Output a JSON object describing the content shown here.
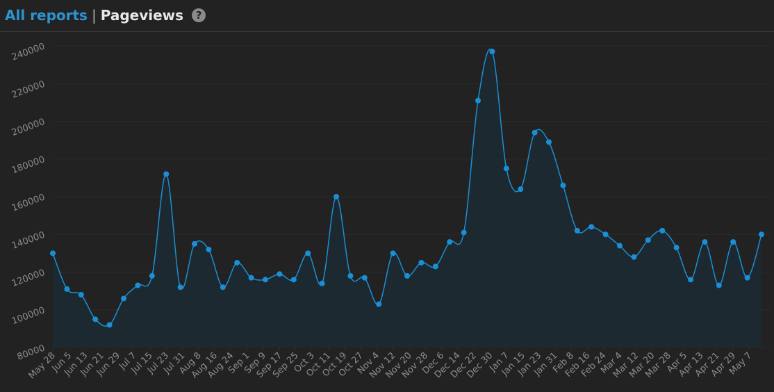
{
  "header": {
    "breadcrumb": "All reports",
    "separator": "|",
    "title": "Pageviews",
    "help": "?"
  },
  "chart_data": {
    "type": "area",
    "x": [
      0,
      7,
      14,
      21,
      28,
      35,
      42,
      49,
      56,
      63,
      70,
      77,
      84,
      91,
      98,
      105,
      112,
      119,
      126,
      133,
      140,
      147,
      154,
      161,
      168,
      175,
      182,
      189,
      196,
      203,
      210,
      217,
      224,
      231,
      238,
      245,
      252,
      259,
      266,
      273,
      280,
      287,
      294,
      301,
      308,
      315,
      322,
      329,
      336,
      343,
      350
    ],
    "series": [
      {
        "name": "Pageviews",
        "color": "#1a8fd6",
        "values": [
          130000,
          111000,
          108000,
          95000,
          92000,
          106000,
          113000,
          118000,
          172000,
          112000,
          135000,
          132000,
          112000,
          125000,
          117000,
          116000,
          119000,
          116000,
          130000,
          114000,
          160000,
          118000,
          117000,
          103000,
          130000,
          118000,
          125000,
          123000,
          136000,
          141000,
          211000,
          237000,
          175000,
          164000,
          194000,
          189000,
          166000,
          142000,
          144000,
          140000,
          134000,
          128000,
          137000,
          142000,
          133000,
          116000,
          136000,
          113000,
          136000,
          117000,
          140000
        ]
      }
    ],
    "xlim": [
      0,
      350
    ],
    "xticks": [
      {
        "value": 0,
        "label": "May 28"
      },
      {
        "value": 8,
        "label": "Jun 5"
      },
      {
        "value": 16,
        "label": "Jun 13"
      },
      {
        "value": 24,
        "label": "Jun 21"
      },
      {
        "value": 32,
        "label": "Jun 29"
      },
      {
        "value": 40,
        "label": "Jul 7"
      },
      {
        "value": 48,
        "label": "Jul 15"
      },
      {
        "value": 56,
        "label": "Jul 23"
      },
      {
        "value": 64,
        "label": "Jul 31"
      },
      {
        "value": 72,
        "label": "Aug 8"
      },
      {
        "value": 80,
        "label": "Aug 16"
      },
      {
        "value": 88,
        "label": "Aug 24"
      },
      {
        "value": 96,
        "label": "Sep 1"
      },
      {
        "value": 104,
        "label": "Sep 9"
      },
      {
        "value": 112,
        "label": "Sep 17"
      },
      {
        "value": 120,
        "label": "Sep 25"
      },
      {
        "value": 128,
        "label": "Oct 3"
      },
      {
        "value": 136,
        "label": "Oct 11"
      },
      {
        "value": 144,
        "label": "Oct 19"
      },
      {
        "value": 152,
        "label": "Oct 27"
      },
      {
        "value": 160,
        "label": "Nov 4"
      },
      {
        "value": 168,
        "label": "Nov 12"
      },
      {
        "value": 176,
        "label": "Nov 20"
      },
      {
        "value": 184,
        "label": "Nov 28"
      },
      {
        "value": 192,
        "label": "Dec 6"
      },
      {
        "value": 200,
        "label": "Dec 14"
      },
      {
        "value": 208,
        "label": "Dec 22"
      },
      {
        "value": 216,
        "label": "Dec 30"
      },
      {
        "value": 224,
        "label": "Jan 7"
      },
      {
        "value": 232,
        "label": "Jan 15"
      },
      {
        "value": 240,
        "label": "Jan 23"
      },
      {
        "value": 248,
        "label": "Jan 31"
      },
      {
        "value": 256,
        "label": "Feb 8"
      },
      {
        "value": 264,
        "label": "Feb 16"
      },
      {
        "value": 272,
        "label": "Feb 24"
      },
      {
        "value": 280,
        "label": "Mar 4"
      },
      {
        "value": 288,
        "label": "Mar 12"
      },
      {
        "value": 296,
        "label": "Mar 20"
      },
      {
        "value": 304,
        "label": "Mar 28"
      },
      {
        "value": 312,
        "label": "Apr 5"
      },
      {
        "value": 320,
        "label": "Apr 13"
      },
      {
        "value": 328,
        "label": "Apr 21"
      },
      {
        "value": 336,
        "label": "Apr 29"
      },
      {
        "value": 344,
        "label": "May 7"
      }
    ],
    "ylim": [
      80000,
      240000
    ],
    "yticks": [
      80000,
      100000,
      120000,
      140000,
      160000,
      180000,
      200000,
      220000,
      240000
    ],
    "grid": true
  }
}
